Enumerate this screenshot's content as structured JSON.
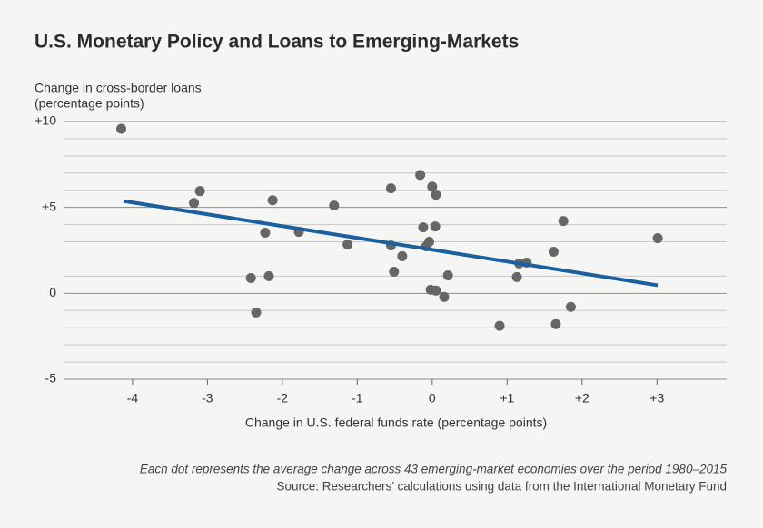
{
  "chart_data": {
    "type": "scatter",
    "title": "U.S. Monetary Policy and Loans to Emerging-Markets",
    "y_label": [
      "Change in cross-border loans",
      "(percentage points)"
    ],
    "x_label": "Change in U.S. federal funds rate (percentage points)",
    "notes": [
      "Each dot represents the average change across 43 emerging-market economies over the period 1980–2015",
      "Source: Researchers’ calculations using data from the International Monetary Fund"
    ],
    "color": "#666666",
    "x": [
      -4.15,
      -3.18,
      -3.1,
      -2.13,
      -2.23,
      -2.42,
      -2.18,
      -2.35,
      -1.78,
      -1.31,
      -1.13,
      -0.55,
      -0.16,
      0.0,
      0.05,
      -0.12,
      0.04,
      -0.04,
      -0.08,
      -0.55,
      -0.4,
      -0.51,
      0.21,
      -0.02,
      0.05,
      0.16,
      0.9,
      1.16,
      1.26,
      1.13,
      1.62,
      1.75,
      1.65,
      1.85,
      3.01
    ],
    "y": [
      9.58,
      5.26,
      5.95,
      5.42,
      3.53,
      0.89,
      1.0,
      -1.11,
      3.58,
      5.11,
      2.84,
      6.11,
      6.89,
      6.21,
      5.74,
      3.84,
      3.89,
      3.0,
      2.74,
      2.79,
      2.16,
      1.26,
      1.05,
      0.21,
      0.16,
      -0.21,
      -1.89,
      1.74,
      1.79,
      0.95,
      2.42,
      4.21,
      -1.79,
      -0.79,
      3.21
    ],
    "trend_line": {
      "x": [
        -4.12,
        3.01
      ],
      "y": [
        5.37,
        0.47
      ],
      "color": "#1a5f9e"
    },
    "xlim": [
      -4.92,
      3.93
    ],
    "ylim": [
      -5,
      10
    ],
    "xticks": [
      {
        "value": -4,
        "label": "-4"
      },
      {
        "value": -3,
        "label": "-3"
      },
      {
        "value": -2,
        "label": "-2"
      },
      {
        "value": -1,
        "label": "-1"
      },
      0,
      {
        "value": 1,
        "label": "+1"
      },
      {
        "value": 2,
        "label": "+2"
      },
      {
        "value": 3,
        "label": "+3"
      }
    ],
    "yticks": [
      {
        "value": -5,
        "label": "-5"
      },
      0,
      {
        "value": 5,
        "label": "+5"
      },
      {
        "value": 10,
        "label": "+10"
      }
    ],
    "yminorticks": [
      -4,
      -3,
      -2,
      -1,
      1,
      2,
      3,
      4,
      6,
      7,
      8,
      9
    ],
    "grid": true
  }
}
